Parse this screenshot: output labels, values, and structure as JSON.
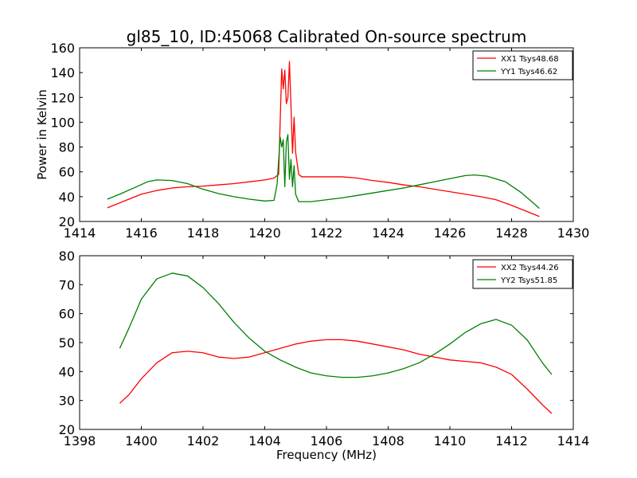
{
  "chart_data": [
    {
      "type": "line",
      "title": "gl85_10, ID:45068 Calibrated On-source spectrum",
      "xlabel": "",
      "ylabel": "Power in Kelvin",
      "xlim": [
        1414,
        1430
      ],
      "ylim": [
        20,
        160
      ],
      "xticks": [
        1414,
        1416,
        1418,
        1420,
        1422,
        1424,
        1426,
        1428,
        1430
      ],
      "yticks": [
        20,
        40,
        60,
        80,
        100,
        120,
        140,
        160
      ],
      "legend": "top-right",
      "series": [
        {
          "name": "XX1 Tsys48.68",
          "color": "#ff0000",
          "points": [
            [
              1414.9,
              31
            ],
            [
              1415.5,
              37
            ],
            [
              1416,
              42
            ],
            [
              1416.5,
              45
            ],
            [
              1417,
              47
            ],
            [
              1417.5,
              48
            ],
            [
              1418,
              48.5
            ],
            [
              1418.5,
              49.5
            ],
            [
              1419,
              50.5
            ],
            [
              1419.5,
              52
            ],
            [
              1420,
              53.5
            ],
            [
              1420.3,
              55
            ],
            [
              1420.45,
              58
            ],
            [
              1420.55,
              143
            ],
            [
              1420.6,
              127
            ],
            [
              1420.65,
              142
            ],
            [
              1420.7,
              115
            ],
            [
              1420.75,
              120
            ],
            [
              1420.8,
              149
            ],
            [
              1420.85,
              113
            ],
            [
              1420.9,
              75
            ],
            [
              1420.95,
              104
            ],
            [
              1421.0,
              76
            ],
            [
              1421.1,
              58
            ],
            [
              1421.2,
              56
            ],
            [
              1422,
              56
            ],
            [
              1422.5,
              56
            ],
            [
              1423,
              55
            ],
            [
              1423.5,
              53
            ],
            [
              1424,
              51.5
            ],
            [
              1424.5,
              49.5
            ],
            [
              1425,
              48
            ],
            [
              1425.5,
              46
            ],
            [
              1426,
              44
            ],
            [
              1426.5,
              42
            ],
            [
              1427,
              40
            ],
            [
              1427.5,
              37.5
            ],
            [
              1428,
              33
            ],
            [
              1428.5,
              28
            ],
            [
              1428.9,
              24
            ]
          ]
        },
        {
          "name": "YY1 Tsys46.62",
          "color": "#008000",
          "points": [
            [
              1414.9,
              38
            ],
            [
              1415.3,
              42
            ],
            [
              1415.8,
              47.5
            ],
            [
              1416.2,
              52
            ],
            [
              1416.5,
              53.5
            ],
            [
              1417,
              53
            ],
            [
              1417.5,
              50.5
            ],
            [
              1418,
              46
            ],
            [
              1418.5,
              42.5
            ],
            [
              1419,
              40
            ],
            [
              1419.5,
              38
            ],
            [
              1420,
              36.5
            ],
            [
              1420.3,
              37
            ],
            [
              1420.4,
              50
            ],
            [
              1420.5,
              88
            ],
            [
              1420.55,
              80
            ],
            [
              1420.6,
              86
            ],
            [
              1420.65,
              48
            ],
            [
              1420.7,
              84
            ],
            [
              1420.75,
              90
            ],
            [
              1420.8,
              54
            ],
            [
              1420.85,
              70
            ],
            [
              1420.9,
              48
            ],
            [
              1420.95,
              65
            ],
            [
              1421.0,
              42
            ],
            [
              1421.1,
              36
            ],
            [
              1421.5,
              36
            ],
            [
              1422,
              37.5
            ],
            [
              1422.5,
              39
            ],
            [
              1423,
              41
            ],
            [
              1423.5,
              43
            ],
            [
              1424,
              45
            ],
            [
              1424.5,
              47
            ],
            [
              1425,
              49.5
            ],
            [
              1425.5,
              52
            ],
            [
              1426,
              54.5
            ],
            [
              1426.5,
              57
            ],
            [
              1426.8,
              57.5
            ],
            [
              1427.2,
              56.5
            ],
            [
              1427.8,
              52
            ],
            [
              1428.3,
              43.5
            ],
            [
              1428.7,
              35
            ],
            [
              1428.9,
              30.5
            ]
          ]
        }
      ]
    },
    {
      "type": "line",
      "title": "",
      "xlabel": "Frequency (MHz)",
      "ylabel": "",
      "xlim": [
        1398,
        1414
      ],
      "ylim": [
        20,
        80
      ],
      "xticks": [
        1398,
        1400,
        1402,
        1404,
        1406,
        1408,
        1410,
        1412,
        1414
      ],
      "yticks": [
        20,
        30,
        40,
        50,
        60,
        70,
        80
      ],
      "legend": "top-right",
      "series": [
        {
          "name": "XX2 Tsys44.26",
          "color": "#ff0000",
          "points": [
            [
              1399.3,
              29
            ],
            [
              1399.6,
              32
            ],
            [
              1400,
              37.5
            ],
            [
              1400.5,
              43
            ],
            [
              1401,
              46.5
            ],
            [
              1401.5,
              47
            ],
            [
              1402,
              46.5
            ],
            [
              1402.5,
              45
            ],
            [
              1403,
              44.5
            ],
            [
              1403.5,
              45
            ],
            [
              1404,
              46.5
            ],
            [
              1404.5,
              48
            ],
            [
              1405,
              49.5
            ],
            [
              1405.5,
              50.5
            ],
            [
              1406,
              51
            ],
            [
              1406.5,
              51
            ],
            [
              1407,
              50.5
            ],
            [
              1407.5,
              49.5
            ],
            [
              1408,
              48.5
            ],
            [
              1408.5,
              47.5
            ],
            [
              1409,
              46
            ],
            [
              1409.5,
              45
            ],
            [
              1410,
              44
            ],
            [
              1410.5,
              43.5
            ],
            [
              1411,
              43
            ],
            [
              1411.5,
              41.5
            ],
            [
              1412,
              39
            ],
            [
              1412.5,
              34
            ],
            [
              1413,
              28.5
            ],
            [
              1413.3,
              25.5
            ]
          ]
        },
        {
          "name": "YY2 Tsys51.85",
          "color": "#008000",
          "points": [
            [
              1399.3,
              48
            ],
            [
              1399.6,
              55
            ],
            [
              1400,
              65
            ],
            [
              1400.5,
              72
            ],
            [
              1401,
              74
            ],
            [
              1401.5,
              73
            ],
            [
              1402,
              69
            ],
            [
              1402.5,
              63.5
            ],
            [
              1403,
              57
            ],
            [
              1403.5,
              51.5
            ],
            [
              1404,
              47
            ],
            [
              1404.5,
              44
            ],
            [
              1405,
              41.5
            ],
            [
              1405.5,
              39.5
            ],
            [
              1406,
              38.5
            ],
            [
              1406.5,
              38
            ],
            [
              1407,
              38
            ],
            [
              1407.5,
              38.5
            ],
            [
              1408,
              39.5
            ],
            [
              1408.5,
              41
            ],
            [
              1409,
              43
            ],
            [
              1409.5,
              46
            ],
            [
              1410,
              49.5
            ],
            [
              1410.5,
              53.5
            ],
            [
              1411,
              56.5
            ],
            [
              1411.5,
              58
            ],
            [
              1412,
              56
            ],
            [
              1412.5,
              51
            ],
            [
              1413,
              43
            ],
            [
              1413.3,
              39
            ]
          ]
        }
      ]
    }
  ]
}
